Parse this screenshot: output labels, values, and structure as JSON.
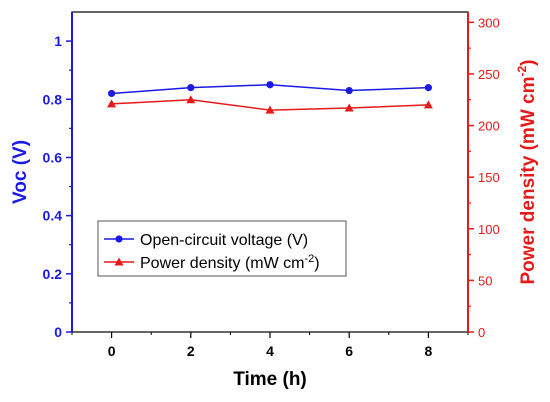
{
  "chart_data": {
    "type": "line",
    "xlabel": "Time (h)",
    "ylabel_left": "Voc (V)",
    "ylabel_right_main": "Power density (mW cm",
    "ylabel_right_sup": "-2",
    "ylabel_right_end": ")",
    "xlim": [
      -1,
      9
    ],
    "x_ticks": [
      "0",
      "2",
      "4",
      "6",
      "8"
    ],
    "ylim_left": [
      0,
      1.1
    ],
    "y_ticks_left": [
      "0",
      "0.2",
      "0.4",
      "0.6",
      "0.8",
      "1"
    ],
    "ylim_right": [
      0,
      310
    ],
    "y_ticks_right": [
      "0",
      "50",
      "100",
      "150",
      "200",
      "250",
      "300"
    ],
    "x": [
      0,
      2,
      4,
      6,
      8
    ],
    "series": [
      {
        "name": "Open-circuit voltage (V)",
        "axis": "left",
        "color": "#1a1ae6",
        "marker": "circle",
        "values": [
          0.82,
          0.84,
          0.85,
          0.83,
          0.84
        ]
      },
      {
        "name": "Power density (mW cm-2)",
        "axis": "right",
        "color": "#e61a1a",
        "marker": "triangle",
        "values": [
          221,
          225,
          215,
          217,
          220
        ]
      }
    ],
    "legend": {
      "placement": "lower-left",
      "items": [
        {
          "label": "Open-circuit voltage (V)",
          "sup": "",
          "end": ""
        },
        {
          "label": "Power density (mW cm",
          "sup": "-2",
          "end": ")"
        }
      ]
    },
    "grid": false
  }
}
